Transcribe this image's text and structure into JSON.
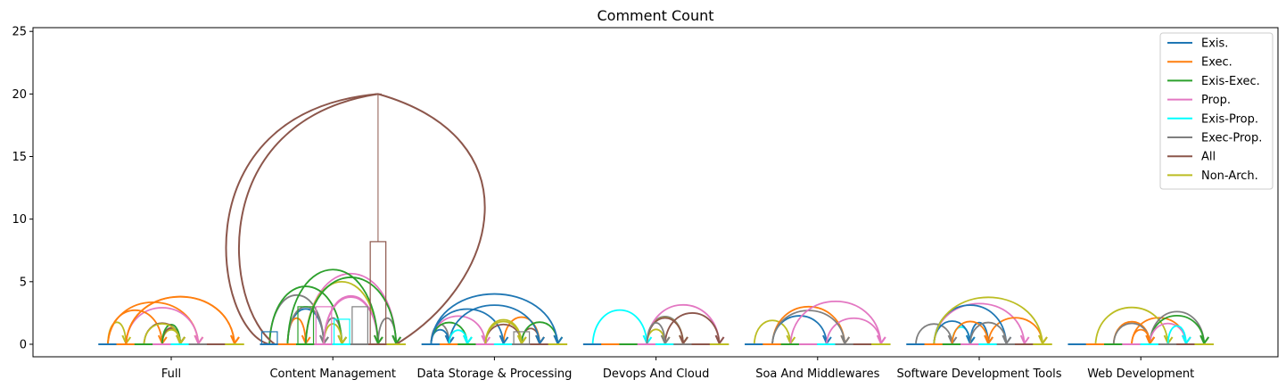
{
  "chart_data": {
    "type": "bar",
    "title": "Comment Count",
    "xlabel": "",
    "ylabel": "",
    "ylim": [
      -1,
      25.3
    ],
    "yticks": [
      0,
      5,
      10,
      15,
      20,
      25
    ],
    "grid": false,
    "legend_position": "top-right",
    "categories": [
      "Full",
      "Content Management",
      "Data Storage & Processing",
      "Devops And Cloud",
      "Soa And Middlewares",
      "Software Development Tools",
      "Web Development"
    ],
    "series": [
      {
        "name": "Exis.",
        "color": "#1f77b4",
        "values": [
          0,
          1,
          0,
          0,
          0,
          0,
          0
        ]
      },
      {
        "name": "Exec.",
        "color": "#ff7f0e",
        "values": [
          0,
          0,
          0,
          0,
          0,
          0,
          0
        ]
      },
      {
        "name": "Exis-Exec.",
        "color": "#2ca02c",
        "values": [
          0,
          3,
          0,
          0,
          0,
          0,
          0
        ]
      },
      {
        "name": "Prop.",
        "color": "#e377c2",
        "values": [
          0,
          3,
          0,
          0,
          0,
          0,
          0
        ]
      },
      {
        "name": "Exis-Prop.",
        "color": "#00ffff",
        "values": [
          0,
          2,
          0,
          0,
          0,
          0,
          0
        ]
      },
      {
        "name": "Exec-Prop.",
        "color": "#7f7f7f",
        "values": [
          0,
          3,
          1,
          0,
          0,
          0,
          0
        ]
      },
      {
        "name": "All",
        "color": "#8c564b",
        "values": [
          0,
          8.2,
          0,
          0,
          0,
          0,
          0
        ]
      },
      {
        "name": "Non-Arch.",
        "color": "#bcbd22",
        "values": [
          0,
          0,
          0,
          0,
          0,
          0,
          0
        ]
      }
    ],
    "error_bar_max": {
      "category": "Content Management",
      "series": "All",
      "value": 20
    }
  }
}
